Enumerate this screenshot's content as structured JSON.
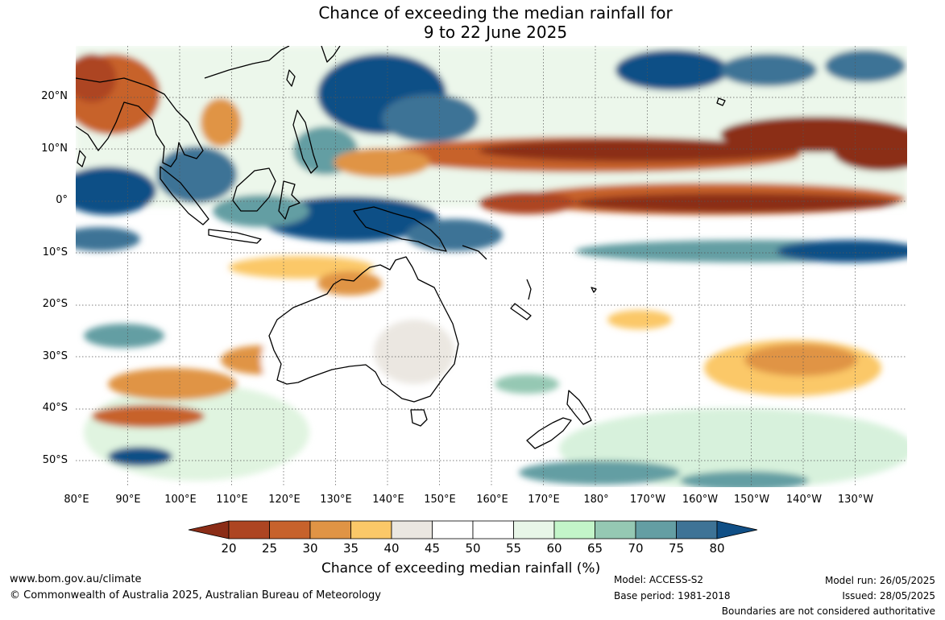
{
  "title": {
    "line1": "Chance of exceeding the median rainfall for",
    "line2": "9 to 22 June 2025"
  },
  "map": {
    "lat_labels": [
      "20°N",
      "10°N",
      "0°",
      "10°S",
      "20°S",
      "30°S",
      "40°S",
      "50°S"
    ],
    "lon_labels": [
      "80°E",
      "90°E",
      "100°E",
      "110°E",
      "120°E",
      "130°E",
      "140°E",
      "150°E",
      "160°E",
      "170°E",
      "180°",
      "170°W",
      "160°W",
      "150°W",
      "140°W",
      "130°W"
    ],
    "extent": {
      "lon": [
        80,
        240
      ],
      "lat": [
        -55,
        30
      ]
    },
    "patterns": {
      "blue_wet": [
        "Western Pacific north of Philippines (15-25°N)",
        "Maritime Continent and New Guinea (0-10°S)",
        "Central Pacific 20-30°N",
        "Equatorial band 5-10°S near 160°W-130°W"
      ],
      "brown_dry": [
        "Pacific band 5-15°N from 120°E to 130°W",
        "Equatorial Pacific 0-5°S east of 160°E",
        "Indian subcontinent / Bay of Bengal region",
        "Southern Indian Ocean patches 30-40°S"
      ],
      "near_neutral": [
        "Australian interior"
      ]
    }
  },
  "legend": {
    "title": "Chance of exceeding median rainfall (%)",
    "labels": [
      "20",
      "25",
      "30",
      "35",
      "40",
      "45",
      "50",
      "55",
      "60",
      "65",
      "70",
      "75",
      "80"
    ],
    "colors": [
      "#8b2d17",
      "#ad4522",
      "#c7622c",
      "#e09445",
      "#fbc868",
      "#ebe7e1",
      "#ffffff",
      "#ffffff",
      "#e8f6e8",
      "#c3f5c9",
      "#95c8b3",
      "#649ea3",
      "#3e7396",
      "#104f86"
    ]
  },
  "footer": {
    "website": "www.bom.gov.au/climate",
    "copyright": "© Commonwealth of Australia 2025, Australian Bureau of Meteorology",
    "model": "Model: ACCESS-S2",
    "base_period": "Base period: 1981-2018",
    "model_run": "Model run: 26/05/2025",
    "issued": "Issued: 28/05/2025",
    "disclaimer": "Boundaries are not considered authoritative"
  }
}
